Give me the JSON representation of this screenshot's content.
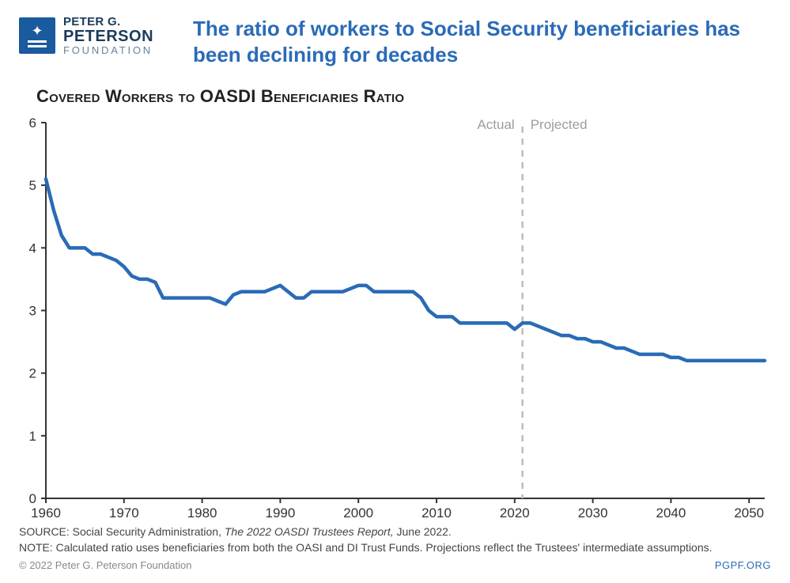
{
  "logo": {
    "line1": "PETER G.",
    "line2": "PETERSON",
    "line3": "FOUNDATION"
  },
  "headline": "The ratio of workers to Social Security beneficiaries has been declining for decades",
  "subtitle": "Covered Workers to OASDI Beneficiaries Ratio",
  "chart": {
    "type": "line",
    "line_color": "#2a6bb6",
    "line_width": 4.5,
    "background_color": "#ffffff",
    "axis_line_color": "#333333",
    "axis_line_width": 2,
    "tick_length": 6,
    "font_size_axis": 17,
    "font_color_axis": "#333333",
    "x": {
      "min": 1960,
      "max": 2052,
      "ticks": [
        1960,
        1970,
        1980,
        1990,
        2000,
        2010,
        2020,
        2030,
        2040,
        2050
      ]
    },
    "y": {
      "min": 0,
      "max": 6,
      "ticks": [
        0,
        1,
        2,
        3,
        4,
        5,
        6
      ]
    },
    "divider": {
      "year": 2021,
      "color": "#bdbdbd",
      "width": 2.5,
      "dash": "8 7",
      "label_left": "Actual",
      "label_right": "Projected",
      "label_color": "#9c9c9c",
      "label_fontsize": 17
    },
    "series": {
      "years": [
        1960,
        1961,
        1962,
        1963,
        1964,
        1965,
        1966,
        1967,
        1968,
        1969,
        1970,
        1971,
        1972,
        1973,
        1974,
        1975,
        1976,
        1977,
        1978,
        1979,
        1980,
        1981,
        1982,
        1983,
        1984,
        1985,
        1986,
        1987,
        1988,
        1989,
        1990,
        1991,
        1992,
        1993,
        1994,
        1995,
        1996,
        1997,
        1998,
        1999,
        2000,
        2001,
        2002,
        2003,
        2004,
        2005,
        2006,
        2007,
        2008,
        2009,
        2010,
        2011,
        2012,
        2013,
        2014,
        2015,
        2016,
        2017,
        2018,
        2019,
        2020,
        2021,
        2022,
        2023,
        2024,
        2025,
        2026,
        2027,
        2028,
        2029,
        2030,
        2031,
        2032,
        2033,
        2034,
        2035,
        2036,
        2037,
        2038,
        2039,
        2040,
        2041,
        2042,
        2043,
        2044,
        2045,
        2046,
        2047,
        2048,
        2049,
        2050,
        2051,
        2052
      ],
      "values": [
        5.1,
        4.6,
        4.2,
        4.0,
        4.0,
        4.0,
        3.9,
        3.9,
        3.85,
        3.8,
        3.7,
        3.55,
        3.5,
        3.5,
        3.45,
        3.2,
        3.2,
        3.2,
        3.2,
        3.2,
        3.2,
        3.2,
        3.15,
        3.1,
        3.25,
        3.3,
        3.3,
        3.3,
        3.3,
        3.35,
        3.4,
        3.3,
        3.2,
        3.2,
        3.3,
        3.3,
        3.3,
        3.3,
        3.3,
        3.35,
        3.4,
        3.4,
        3.3,
        3.3,
        3.3,
        3.3,
        3.3,
        3.3,
        3.2,
        3.0,
        2.9,
        2.9,
        2.9,
        2.8,
        2.8,
        2.8,
        2.8,
        2.8,
        2.8,
        2.8,
        2.7,
        2.8,
        2.8,
        2.75,
        2.7,
        2.65,
        2.6,
        2.6,
        2.55,
        2.55,
        2.5,
        2.5,
        2.45,
        2.4,
        2.4,
        2.35,
        2.3,
        2.3,
        2.3,
        2.3,
        2.25,
        2.25,
        2.2,
        2.2,
        2.2,
        2.2,
        2.2,
        2.2,
        2.2,
        2.2,
        2.2,
        2.2,
        2.2
      ]
    }
  },
  "footer": {
    "source_prefix": "SOURCE: Social Security Administration, ",
    "source_italic": "The 2022 OASDI Trustees Report,",
    "source_suffix": " June 2022.",
    "note": "NOTE: Calculated ratio uses beneficiaries from both the OASI and DI Trust Funds. Projections reflect the Trustees' intermediate assumptions.",
    "copyright": "© 2022 Peter G. Peterson Foundation",
    "site": "PGPF.ORG"
  }
}
